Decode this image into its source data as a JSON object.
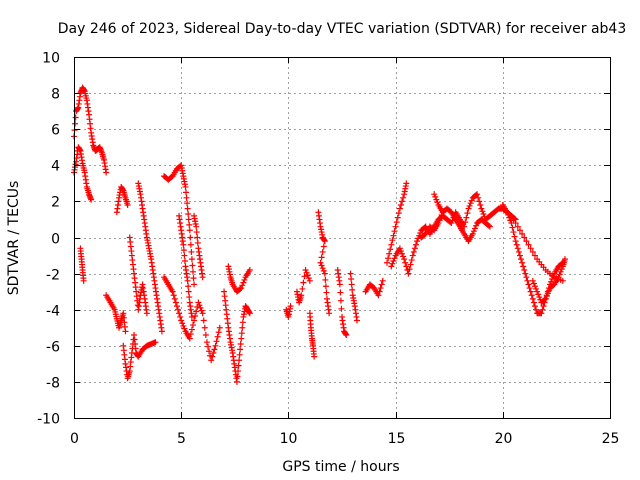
{
  "chart_data": {
    "type": "scatter",
    "title": "Day 246 of 2023, Sidereal Day-to-day VTEC variation (SDTVAR) for receiver ab43",
    "xlabel": "GPS time / hours",
    "ylabel": "SDTVAR / TECUs",
    "xlim": [
      0,
      25
    ],
    "ylim": [
      -10,
      10
    ],
    "xticks": [
      0,
      5,
      10,
      15,
      20,
      25
    ],
    "yticks": [
      -10,
      -8,
      -6,
      -4,
      -2,
      0,
      2,
      4,
      6,
      8,
      10
    ],
    "grid": true,
    "marker": "+",
    "marker_color": "#ff0000",
    "series": [
      {
        "name": "SDTVAR",
        "segments": [
          [
            [
              0.0,
              5.6
            ],
            [
              0.1,
              7.0
            ],
            [
              0.2,
              7.2
            ],
            [
              0.3,
              8.0
            ],
            [
              0.4,
              8.3
            ],
            [
              0.5,
              8.1
            ],
            [
              0.6,
              7.6
            ],
            [
              0.7,
              6.8
            ],
            [
              0.8,
              5.8
            ],
            [
              0.9,
              5.1
            ],
            [
              1.0,
              4.8
            ],
            [
              1.1,
              4.9
            ],
            [
              1.2,
              5.0
            ],
            [
              1.3,
              4.7
            ],
            [
              1.4,
              4.3
            ],
            [
              1.5,
              3.6
            ]
          ],
          [
            [
              0.0,
              3.6
            ],
            [
              0.1,
              4.2
            ],
            [
              0.2,
              5.0
            ],
            [
              0.3,
              4.8
            ],
            [
              0.4,
              4.1
            ],
            [
              0.5,
              3.6
            ],
            [
              0.6,
              2.8
            ],
            [
              0.7,
              2.4
            ],
            [
              0.8,
              2.1
            ]
          ],
          [
            [
              0.3,
              -0.6
            ],
            [
              0.35,
              -1.2
            ],
            [
              0.4,
              -1.8
            ],
            [
              0.45,
              -2.4
            ]
          ],
          [
            [
              1.5,
              -3.2
            ],
            [
              1.7,
              -3.6
            ],
            [
              1.9,
              -4.0
            ],
            [
              2.0,
              -4.5
            ],
            [
              2.1,
              -5.0
            ],
            [
              2.2,
              -4.6
            ],
            [
              2.3,
              -4.2
            ],
            [
              2.4,
              -5.2
            ]
          ],
          [
            [
              2.0,
              1.4
            ],
            [
              2.1,
              2.2
            ],
            [
              2.2,
              2.8
            ],
            [
              2.3,
              2.6
            ],
            [
              2.4,
              2.2
            ],
            [
              2.5,
              1.8
            ]
          ],
          [
            [
              2.3,
              -6.0
            ],
            [
              2.4,
              -7.0
            ],
            [
              2.5,
              -7.8
            ],
            [
              2.6,
              -7.4
            ],
            [
              2.7,
              -6.4
            ],
            [
              2.8,
              -5.4
            ],
            [
              2.9,
              -6.4
            ],
            [
              3.0,
              -6.6
            ],
            [
              3.2,
              -6.2
            ],
            [
              3.4,
              -6.0
            ],
            [
              3.6,
              -5.9
            ],
            [
              3.8,
              -5.8
            ]
          ],
          [
            [
              2.6,
              0.0
            ],
            [
              2.7,
              -1.0
            ],
            [
              2.8,
              -2.0
            ],
            [
              2.9,
              -3.0
            ],
            [
              3.0,
              -4.0
            ],
            [
              3.1,
              -3.2
            ],
            [
              3.2,
              -2.6
            ],
            [
              3.3,
              -3.4
            ],
            [
              3.4,
              -4.2
            ]
          ],
          [
            [
              3.0,
              3.0
            ],
            [
              3.1,
              2.4
            ],
            [
              3.2,
              1.6
            ],
            [
              3.3,
              0.8
            ],
            [
              3.4,
              0.0
            ],
            [
              3.5,
              -0.6
            ],
            [
              3.6,
              -1.2
            ],
            [
              3.7,
              -2.0
            ],
            [
              3.8,
              -2.8
            ],
            [
              3.9,
              -3.6
            ],
            [
              4.0,
              -4.4
            ],
            [
              4.1,
              -5.2
            ]
          ],
          [
            [
              4.2,
              3.4
            ],
            [
              4.4,
              3.2
            ],
            [
              4.6,
              3.4
            ],
            [
              4.8,
              3.8
            ],
            [
              5.0,
              4.0
            ],
            [
              5.1,
              3.4
            ],
            [
              5.2,
              2.8
            ],
            [
              5.3,
              1.6
            ],
            [
              5.4,
              0.4
            ],
            [
              5.5,
              -1.2
            ],
            [
              5.6,
              -2.6
            ]
          ],
          [
            [
              4.2,
              -2.2
            ],
            [
              4.4,
              -2.6
            ],
            [
              4.6,
              -3.0
            ],
            [
              4.8,
              -3.8
            ],
            [
              5.0,
              -4.6
            ],
            [
              5.2,
              -5.2
            ],
            [
              5.4,
              -5.6
            ],
            [
              5.6,
              -4.6
            ],
            [
              5.8,
              -3.6
            ],
            [
              6.0,
              -4.2
            ],
            [
              6.2,
              -5.8
            ],
            [
              6.4,
              -6.8
            ],
            [
              6.6,
              -6.0
            ],
            [
              6.8,
              -5.0
            ]
          ],
          [
            [
              4.9,
              1.2
            ],
            [
              5.0,
              0.4
            ],
            [
              5.1,
              -0.4
            ],
            [
              5.2,
              -1.6
            ],
            [
              5.3,
              -2.4
            ],
            [
              5.4,
              -3.6
            ],
            [
              5.5,
              -4.4
            ]
          ],
          [
            [
              5.6,
              1.2
            ],
            [
              5.7,
              0.6
            ],
            [
              5.8,
              -0.6
            ],
            [
              5.9,
              -1.4
            ],
            [
              6.0,
              -2.2
            ]
          ],
          [
            [
              7.0,
              -3.0
            ],
            [
              7.1,
              -4.0
            ],
            [
              7.2,
              -5.0
            ],
            [
              7.3,
              -5.8
            ],
            [
              7.4,
              -6.4
            ],
            [
              7.5,
              -7.2
            ],
            [
              7.6,
              -8.0
            ],
            [
              7.7,
              -6.8
            ],
            [
              7.8,
              -5.6
            ],
            [
              7.9,
              -4.4
            ],
            [
              8.0,
              -3.8
            ],
            [
              8.1,
              -4.0
            ],
            [
              8.2,
              -4.2
            ]
          ],
          [
            [
              7.2,
              -1.6
            ],
            [
              7.3,
              -2.2
            ],
            [
              7.4,
              -2.6
            ],
            [
              7.6,
              -3.0
            ],
            [
              7.8,
              -2.8
            ],
            [
              8.0,
              -2.2
            ],
            [
              8.2,
              -1.8
            ]
          ],
          [
            [
              9.9,
              -4.0
            ],
            [
              10.0,
              -4.4
            ],
            [
              10.1,
              -3.8
            ]
          ],
          [
            [
              10.4,
              -3.0
            ],
            [
              10.5,
              -3.6
            ],
            [
              10.6,
              -3.2
            ],
            [
              10.8,
              -1.8
            ],
            [
              11.0,
              -2.4
            ]
          ],
          [
            [
              11.0,
              -4.2
            ],
            [
              11.05,
              -5.0
            ],
            [
              11.1,
              -5.6
            ],
            [
              11.15,
              -6.0
            ],
            [
              11.2,
              -6.6
            ]
          ],
          [
            [
              11.4,
              1.4
            ],
            [
              11.5,
              0.6
            ],
            [
              11.6,
              0.0
            ],
            [
              11.7,
              -0.2
            ],
            [
              11.5,
              -1.4
            ],
            [
              11.7,
              -2.0
            ],
            [
              11.8,
              -3.4
            ],
            [
              11.9,
              -4.2
            ]
          ],
          [
            [
              12.3,
              -1.8
            ],
            [
              12.4,
              -2.6
            ],
            [
              12.5,
              -4.4
            ],
            [
              12.6,
              -5.2
            ],
            [
              12.7,
              -5.4
            ]
          ],
          [
            [
              12.9,
              -2.0
            ],
            [
              13.0,
              -3.2
            ],
            [
              13.1,
              -3.8
            ],
            [
              13.2,
              -4.6
            ]
          ],
          [
            [
              13.6,
              -3.0
            ],
            [
              13.8,
              -2.6
            ],
            [
              14.0,
              -2.8
            ],
            [
              14.2,
              -3.2
            ],
            [
              14.4,
              -2.4
            ]
          ],
          [
            [
              14.6,
              -1.4
            ],
            [
              14.8,
              -0.4
            ],
            [
              15.0,
              0.6
            ],
            [
              15.2,
              1.6
            ],
            [
              15.4,
              2.4
            ],
            [
              15.5,
              3.0
            ]
          ],
          [
            [
              14.8,
              -1.6
            ],
            [
              15.0,
              -1.0
            ],
            [
              15.2,
              -0.6
            ],
            [
              15.4,
              -1.2
            ],
            [
              15.6,
              -2.0
            ],
            [
              15.8,
              -1.0
            ],
            [
              16.0,
              -0.2
            ],
            [
              16.2,
              0.4
            ],
            [
              16.4,
              0.6
            ],
            [
              16.6,
              0.2
            ],
            [
              16.8,
              0.6
            ],
            [
              17.0,
              1.0
            ],
            [
              17.2,
              1.2
            ],
            [
              17.4,
              1.0
            ],
            [
              17.6,
              0.8
            ],
            [
              17.8,
              1.4
            ],
            [
              18.0,
              1.0
            ],
            [
              18.2,
              0.6
            ],
            [
              18.4,
              1.6
            ],
            [
              18.6,
              2.2
            ],
            [
              18.8,
              2.4
            ],
            [
              19.0,
              1.6
            ],
            [
              19.2,
              1.0
            ],
            [
              19.4,
              1.2
            ],
            [
              19.6,
              1.4
            ],
            [
              19.8,
              1.6
            ],
            [
              20.0,
              1.6
            ],
            [
              20.2,
              1.4
            ],
            [
              20.4,
              1.2
            ],
            [
              20.6,
              1.0
            ]
          ],
          [
            [
              16.2,
              0.0
            ],
            [
              16.4,
              0.2
            ],
            [
              16.6,
              0.6
            ],
            [
              16.8,
              0.4
            ],
            [
              17.0,
              0.8
            ],
            [
              17.2,
              1.4
            ],
            [
              17.4,
              1.6
            ],
            [
              17.6,
              1.4
            ],
            [
              17.8,
              1.0
            ],
            [
              18.0,
              0.6
            ],
            [
              18.2,
              0.2
            ],
            [
              18.4,
              -0.2
            ],
            [
              18.6,
              0.2
            ],
            [
              18.8,
              0.8
            ],
            [
              19.0,
              1.0
            ],
            [
              19.2,
              0.8
            ],
            [
              19.4,
              0.6
            ]
          ],
          [
            [
              16.8,
              2.4
            ],
            [
              17.0,
              1.8
            ],
            [
              17.2,
              1.4
            ]
          ],
          [
            [
              20.0,
              1.8
            ],
            [
              20.2,
              1.4
            ],
            [
              20.4,
              0.8
            ],
            [
              20.6,
              -0.2
            ],
            [
              20.8,
              -1.0
            ],
            [
              21.0,
              -1.8
            ],
            [
              21.2,
              -2.6
            ],
            [
              21.4,
              -3.4
            ],
            [
              21.6,
              -4.2
            ],
            [
              21.8,
              -4.2
            ],
            [
              22.0,
              -3.4
            ],
            [
              22.2,
              -2.6
            ],
            [
              22.4,
              -2.0
            ],
            [
              22.6,
              -1.6
            ],
            [
              22.8,
              -1.4
            ]
          ],
          [
            [
              20.4,
              1.2
            ],
            [
              20.8,
              0.4
            ],
            [
              21.2,
              -0.4
            ],
            [
              21.6,
              -1.2
            ],
            [
              22.0,
              -1.8
            ],
            [
              22.4,
              -2.2
            ],
            [
              22.8,
              -2.4
            ]
          ],
          [
            [
              21.4,
              -2.4
            ],
            [
              21.6,
              -3.0
            ],
            [
              21.8,
              -3.6
            ],
            [
              22.0,
              -3.4
            ],
            [
              22.2,
              -2.8
            ],
            [
              22.4,
              -2.6
            ],
            [
              22.6,
              -2.2
            ],
            [
              22.8,
              -1.6
            ],
            [
              22.9,
              -1.2
            ]
          ]
        ]
      }
    ]
  }
}
